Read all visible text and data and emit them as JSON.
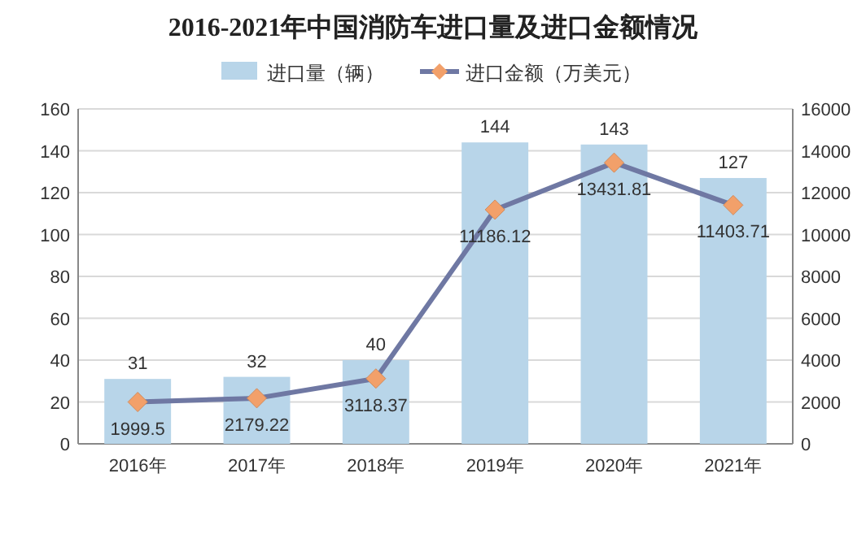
{
  "chart_data": {
    "type": "bar",
    "title": "2016-2021年中国消防车进口量及进口金额情况",
    "categories": [
      "2016年",
      "2017年",
      "2018年",
      "2019年",
      "2020年",
      "2021年"
    ],
    "series": [
      {
        "name": "进口量（辆）",
        "color": "#b8d5e9",
        "values": [
          31,
          32,
          40,
          144,
          143,
          127
        ]
      },
      {
        "name": "进口金额（万美元）",
        "type": "line",
        "axis": "y2",
        "color": "#6f78a3",
        "colors": [
          "#f2a06a",
          "#f2a06a",
          "#f2a06a",
          "#f2a06a",
          "#f2a06a",
          "#f2a06a"
        ],
        "marker": "diamond",
        "values": [
          1999.5,
          2179.22,
          3118.37,
          11186.12,
          13431.81,
          11403.71
        ]
      }
    ],
    "ylim": [
      0,
      160
    ],
    "yticks": [
      0,
      20,
      40,
      60,
      80,
      100,
      120,
      140,
      160
    ],
    "y2lim": [
      0,
      16000
    ],
    "y2ticks": [
      0,
      2000,
      4000,
      6000,
      8000,
      10000,
      12000,
      14000,
      16000
    ],
    "grid": "y",
    "legend": "top",
    "data_labels": true
  }
}
